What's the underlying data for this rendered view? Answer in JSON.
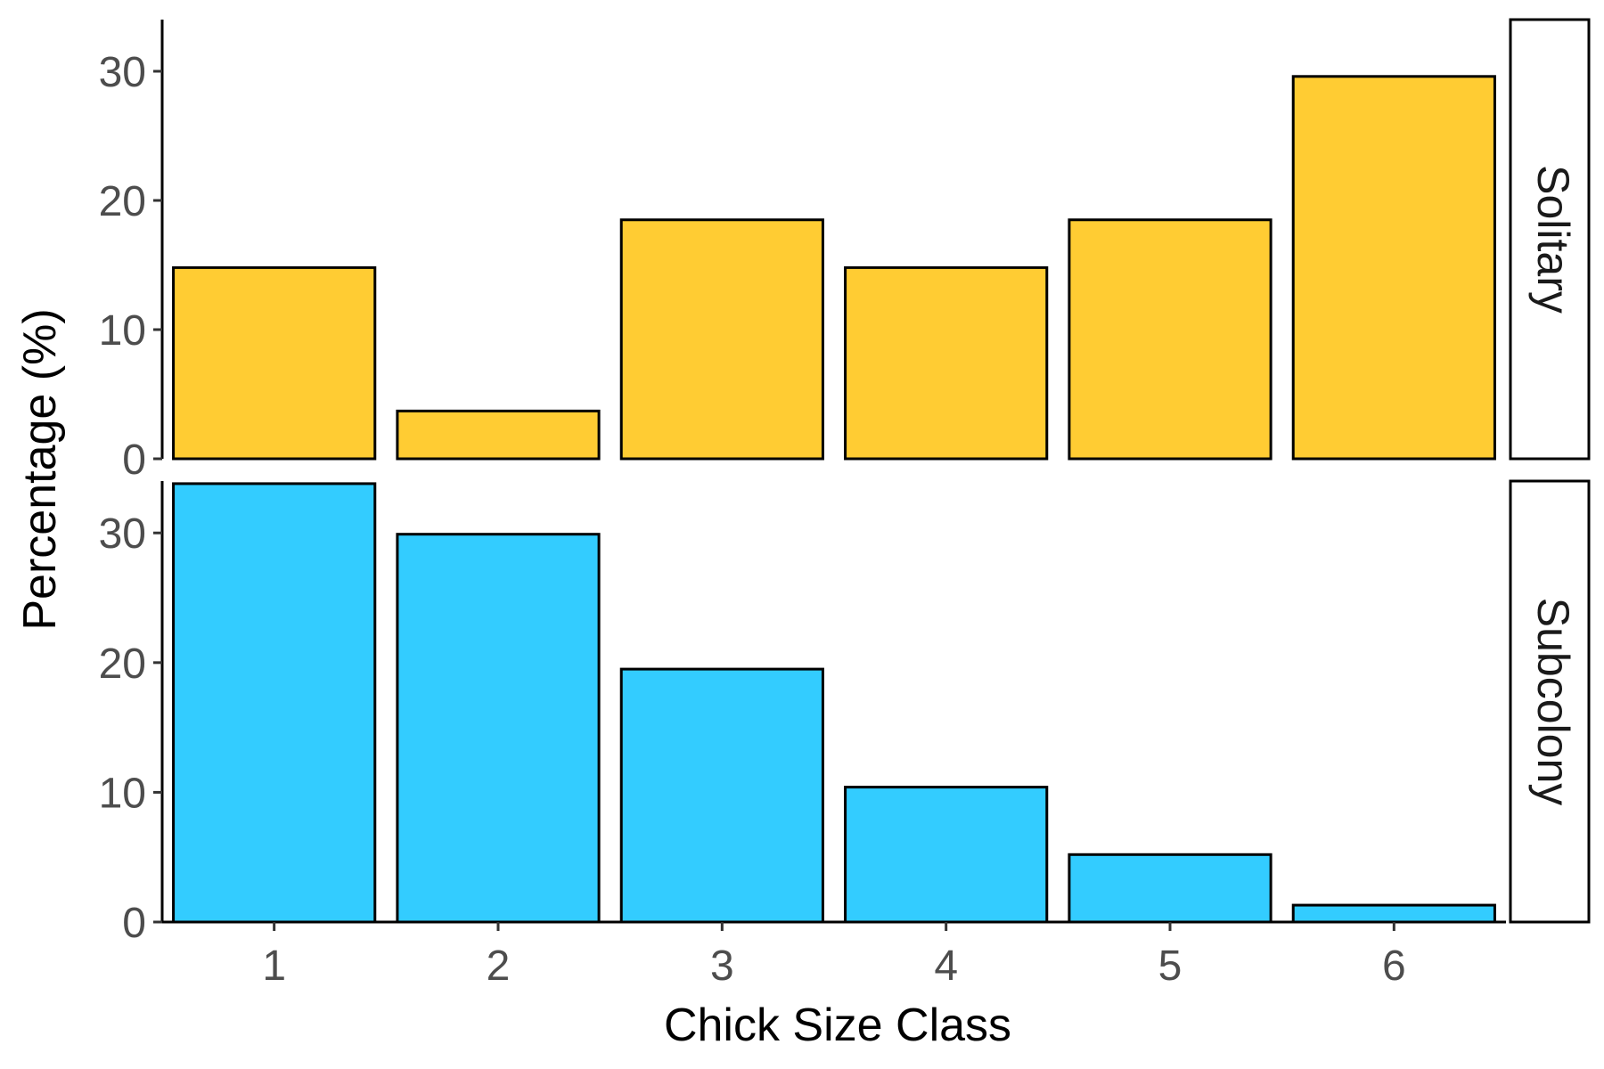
{
  "chart_data": {
    "type": "bar",
    "xlabel": "Chick Size Class",
    "ylabel": "Percentage (%)",
    "categories": [
      "1",
      "2",
      "3",
      "4",
      "5",
      "6"
    ],
    "ylim": [
      0,
      34
    ],
    "yticks": [
      0,
      10,
      20,
      30
    ],
    "ytick_labels": [
      "0",
      "10",
      "20",
      "30"
    ],
    "grid": false,
    "legend": "none",
    "facet": "rows",
    "panels": [
      {
        "strip_label": "Solitary",
        "color": "#FFCC33",
        "values": [
          14.8,
          3.7,
          18.5,
          14.8,
          18.5,
          29.6
        ]
      },
      {
        "strip_label": "Subcolony",
        "color": "#33CCFF",
        "values": [
          33.8,
          29.9,
          19.5,
          10.4,
          5.2,
          1.3
        ]
      }
    ]
  }
}
